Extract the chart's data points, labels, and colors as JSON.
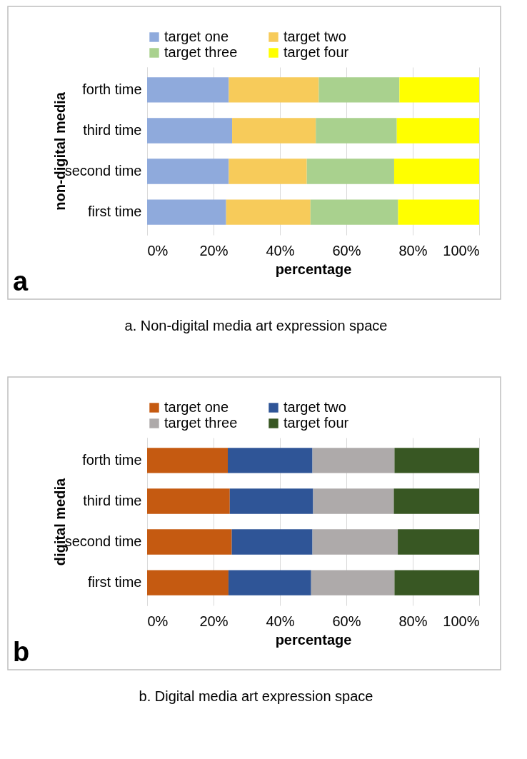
{
  "chart_data": [
    {
      "type": "bar",
      "orientation": "horizontal",
      "stacked": true,
      "ylabel": "non-digital media",
      "xlabel": "percentage",
      "categories": [
        "forth time",
        "third time",
        "second time",
        "first time"
      ],
      "series": [
        {
          "name": "target one",
          "color": "#8faadc",
          "values": [
            24.6,
            25.6,
            24.6,
            23.8
          ]
        },
        {
          "name": "target two",
          "color": "#f7cb5a",
          "values": [
            27.1,
            25.2,
            23.5,
            25.4
          ]
        },
        {
          "name": "target three",
          "color": "#a9d18e",
          "values": [
            24.3,
            24.4,
            26.3,
            26.4
          ]
        },
        {
          "name": "target four",
          "color": "#ffff00",
          "values": [
            24.0,
            24.8,
            25.6,
            24.4
          ]
        }
      ],
      "xlim": [
        0,
        100
      ],
      "xticks": [
        {
          "value": 0,
          "label": "0%"
        },
        {
          "value": 20,
          "label": "20%"
        },
        {
          "value": 40,
          "label": "40%"
        },
        {
          "value": 60,
          "label": "60%"
        },
        {
          "value": 80,
          "label": "80%"
        },
        {
          "value": 100,
          "label": "100%"
        }
      ],
      "grid": "x",
      "legend": "top",
      "annotations": [
        "a",
        "a. Non-digital media art expression space"
      ]
    },
    {
      "type": "bar",
      "orientation": "horizontal",
      "stacked": true,
      "ylabel": "digital media",
      "xlabel": "percentage",
      "categories": [
        "forth time",
        "third time",
        "second time",
        "first time"
      ],
      "series": [
        {
          "name": "target one",
          "color": "#c55a11",
          "values": [
            24.3,
            24.9,
            25.5,
            24.5
          ]
        },
        {
          "name": "target two",
          "color": "#2f5597",
          "values": [
            25.5,
            25.1,
            24.3,
            24.9
          ]
        },
        {
          "name": "target three",
          "color": "#aeaaaa",
          "values": [
            24.7,
            24.3,
            25.7,
            25.1
          ]
        },
        {
          "name": "target four",
          "color": "#385723",
          "values": [
            25.5,
            25.7,
            24.5,
            25.5
          ]
        }
      ],
      "xlim": [
        0,
        100
      ],
      "xticks": [
        {
          "value": 0,
          "label": "0%"
        },
        {
          "value": 20,
          "label": "20%"
        },
        {
          "value": 40,
          "label": "40%"
        },
        {
          "value": 60,
          "label": "60%"
        },
        {
          "value": 80,
          "label": "80%"
        },
        {
          "value": 100,
          "label": "100%"
        }
      ],
      "grid": "x",
      "legend": "top",
      "annotations": [
        "b",
        "b. Digital media art expression space"
      ]
    }
  ]
}
